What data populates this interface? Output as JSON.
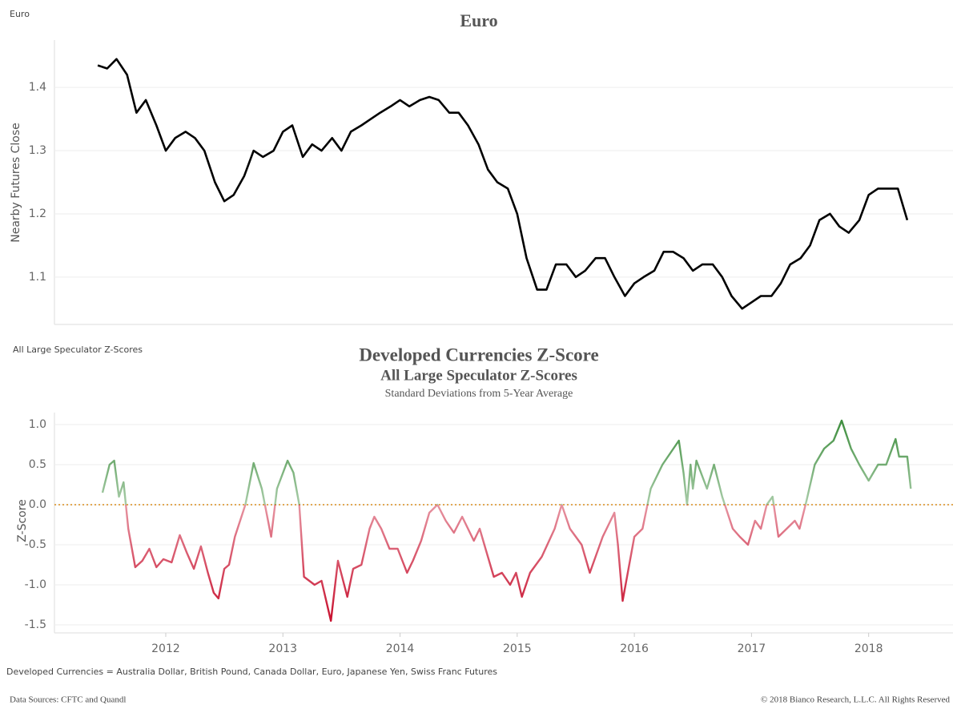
{
  "chart_data": [
    {
      "type": "line",
      "caption": "Euro",
      "title": "Euro",
      "y_label": "Nearby Futures Close",
      "x": [
        2011.42,
        2011.5,
        2011.58,
        2011.67,
        2011.75,
        2011.83,
        2011.92,
        2012.0,
        2012.08,
        2012.17,
        2012.25,
        2012.33,
        2012.42,
        2012.5,
        2012.58,
        2012.67,
        2012.75,
        2012.83,
        2012.92,
        2013.0,
        2013.08,
        2013.17,
        2013.25,
        2013.33,
        2013.42,
        2013.5,
        2013.58,
        2013.67,
        2013.75,
        2013.83,
        2013.92,
        2014.0,
        2014.08,
        2014.17,
        2014.25,
        2014.33,
        2014.42,
        2014.5,
        2014.58,
        2014.67,
        2014.75,
        2014.83,
        2014.92,
        2015.0,
        2015.08,
        2015.17,
        2015.25,
        2015.33,
        2015.42,
        2015.5,
        2015.58,
        2015.67,
        2015.75,
        2015.83,
        2015.92,
        2016.0,
        2016.08,
        2016.17,
        2016.25,
        2016.33,
        2016.42,
        2016.5,
        2016.58,
        2016.67,
        2016.75,
        2016.83,
        2016.92,
        2017.0,
        2017.08,
        2017.17,
        2017.25,
        2017.33,
        2017.42,
        2017.5,
        2017.58,
        2017.67,
        2017.75,
        2017.83,
        2017.92,
        2018.0,
        2018.08,
        2018.17,
        2018.25,
        2018.33
      ],
      "series": [
        {
          "name": "Euro",
          "color": "#000000",
          "values": [
            1.435,
            1.43,
            1.445,
            1.42,
            1.36,
            1.38,
            1.34,
            1.3,
            1.32,
            1.33,
            1.32,
            1.3,
            1.25,
            1.22,
            1.23,
            1.26,
            1.3,
            1.29,
            1.3,
            1.33,
            1.34,
            1.29,
            1.31,
            1.3,
            1.32,
            1.3,
            1.33,
            1.34,
            1.35,
            1.36,
            1.37,
            1.38,
            1.37,
            1.38,
            1.385,
            1.38,
            1.36,
            1.36,
            1.34,
            1.31,
            1.27,
            1.25,
            1.24,
            1.2,
            1.13,
            1.08,
            1.08,
            1.12,
            1.12,
            1.1,
            1.11,
            1.13,
            1.13,
            1.1,
            1.07,
            1.09,
            1.1,
            1.11,
            1.14,
            1.14,
            1.13,
            1.11,
            1.12,
            1.12,
            1.1,
            1.07,
            1.05,
            1.06,
            1.07,
            1.07,
            1.09,
            1.12,
            1.13,
            1.15,
            1.19,
            1.2,
            1.18,
            1.17,
            1.19,
            1.23,
            1.24,
            1.24,
            1.24,
            1.19
          ]
        }
      ],
      "xlim": [
        2011.05,
        2018.72
      ],
      "ylim": [
        1.025,
        1.475
      ],
      "yticks": [
        1.1,
        1.2,
        1.3,
        1.4
      ],
      "grid": true
    },
    {
      "type": "line",
      "caption": "All Large Speculator Z-Scores",
      "title": "Developed Currencies Z-Score",
      "subtitle": "All Large Speculator Z-Scores",
      "note": "Standard Deviations from 5-Year Average",
      "y_label": "Z-Score",
      "x": [
        2011.46,
        2011.52,
        2011.56,
        2011.6,
        2011.64,
        2011.68,
        2011.74,
        2011.8,
        2011.86,
        2011.92,
        2011.98,
        2012.05,
        2012.12,
        2012.18,
        2012.24,
        2012.3,
        2012.36,
        2012.41,
        2012.45,
        2012.5,
        2012.54,
        2012.59,
        2012.68,
        2012.75,
        2012.82,
        2012.9,
        2012.95,
        2013.04,
        2013.09,
        2013.14,
        2013.18,
        2013.27,
        2013.33,
        2013.41,
        2013.47,
        2013.55,
        2013.6,
        2013.67,
        2013.74,
        2013.78,
        2013.84,
        2013.91,
        2013.98,
        2014.06,
        2014.11,
        2014.18,
        2014.25,
        2014.32,
        2014.39,
        2014.46,
        2014.53,
        2014.63,
        2014.68,
        2014.73,
        2014.8,
        2014.87,
        2014.94,
        2014.99,
        2015.04,
        2015.11,
        2015.21,
        2015.32,
        2015.38,
        2015.45,
        2015.55,
        2015.62,
        2015.73,
        2015.83,
        2015.86,
        2015.9,
        2015.95,
        2016.0,
        2016.07,
        2016.14,
        2016.24,
        2016.38,
        2016.42,
        2016.45,
        2016.48,
        2016.5,
        2016.53,
        2016.62,
        2016.68,
        2016.75,
        2016.84,
        2016.9,
        2016.97,
        2017.03,
        2017.08,
        2017.13,
        2017.18,
        2017.23,
        2017.3,
        2017.37,
        2017.41,
        2017.47,
        2017.54,
        2017.62,
        2017.7,
        2017.77,
        2017.85,
        2017.92,
        2018.0,
        2018.08,
        2018.15,
        2018.23,
        2018.26,
        2018.33,
        2018.36
      ],
      "series": [
        {
          "name": "Z-Score",
          "values": [
            0.15,
            0.5,
            0.55,
            0.1,
            0.28,
            -0.3,
            -0.78,
            -0.7,
            -0.55,
            -0.78,
            -0.68,
            -0.72,
            -0.38,
            -0.6,
            -0.8,
            -0.52,
            -0.85,
            -1.1,
            -1.17,
            -0.8,
            -0.75,
            -0.4,
            0.0,
            0.52,
            0.2,
            -0.4,
            0.2,
            0.55,
            0.4,
            0.0,
            -0.9,
            -1.0,
            -0.95,
            -1.45,
            -0.7,
            -1.15,
            -0.8,
            -0.75,
            -0.3,
            -0.15,
            -0.3,
            -0.55,
            -0.55,
            -0.85,
            -0.7,
            -0.45,
            -0.1,
            0.0,
            -0.2,
            -0.35,
            -0.15,
            -0.45,
            -0.3,
            -0.55,
            -0.9,
            -0.85,
            -1.0,
            -0.85,
            -1.15,
            -0.85,
            -0.65,
            -0.3,
            0.0,
            -0.3,
            -0.5,
            -0.85,
            -0.4,
            -0.1,
            -0.5,
            -1.2,
            -0.8,
            -0.4,
            -0.3,
            0.2,
            0.5,
            0.8,
            0.4,
            0.0,
            0.5,
            0.2,
            0.55,
            0.2,
            0.5,
            0.1,
            -0.3,
            -0.4,
            -0.5,
            -0.2,
            -0.3,
            0.0,
            0.1,
            -0.4,
            -0.3,
            -0.2,
            -0.3,
            0.05,
            0.5,
            0.7,
            0.8,
            1.05,
            0.7,
            0.5,
            0.3,
            0.5,
            0.5,
            0.82,
            0.6,
            0.6,
            0.2
          ]
        }
      ],
      "color_positive": "#3e8e3e",
      "color_negative": "#c8102e",
      "hline": 0,
      "hline_color": "#d98c1a",
      "xlim": [
        2011.05,
        2018.72
      ],
      "ylim": [
        -1.6,
        1.15
      ],
      "xticks": [
        2012,
        2013,
        2014,
        2015,
        2016,
        2017,
        2018
      ],
      "yticks": [
        {
          "value": -1.5,
          "label": "-1.5"
        },
        {
          "value": -1,
          "label": "-1.0"
        },
        -0.5,
        {
          "value": 0,
          "label": "0.0"
        },
        0.5,
        {
          "value": 1,
          "label": "1.0"
        }
      ],
      "grid": true
    }
  ],
  "footer": {
    "definition": "Developed Currencies = Australia Dollar, British Pound, Canada Dollar, Euro, Japanese Yen, Swiss Franc Futures",
    "sources": "Data Sources: CFTC and Quandl",
    "copyright": "© 2018 Bianco Research, L.L.C. All Rights Reserved"
  }
}
